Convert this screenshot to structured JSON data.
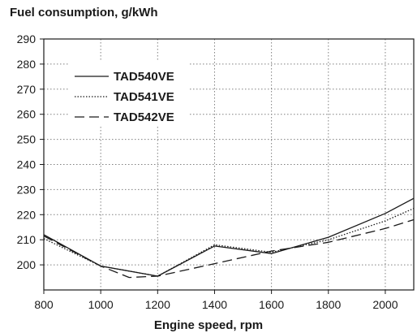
{
  "chart_data": {
    "type": "line",
    "title": "Fuel consumption, g/kWh",
    "xlabel": "Engine speed, rpm",
    "ylabel": "",
    "xlim": [
      800,
      2100
    ],
    "ylim": [
      190,
      290
    ],
    "xticks": [
      800,
      1000,
      1200,
      1400,
      1600,
      1800,
      2000
    ],
    "yticks": [
      200,
      210,
      220,
      230,
      240,
      250,
      260,
      270,
      280,
      290
    ],
    "grid": true,
    "legend_position": "top-left",
    "series": [
      {
        "name": "TAD540VE",
        "style": "solid",
        "x": [
          800,
          1000,
          1200,
          1400,
          1600,
          1800,
          2000,
          2100
        ],
        "y": [
          212,
          199.5,
          195.5,
          207.5,
          204.5,
          211,
          220.5,
          226.5
        ]
      },
      {
        "name": "TAD541VE",
        "style": "dotted",
        "x": [
          800,
          1000,
          1200,
          1400,
          1600,
          1800,
          2000,
          2100
        ],
        "y": [
          210.5,
          199.5,
          195.5,
          208,
          205,
          210,
          217.5,
          222.5
        ]
      },
      {
        "name": "TAD542VE",
        "style": "dashed",
        "x": [
          800,
          1000,
          1100,
          1200,
          1400,
          1600,
          1800,
          2000,
          2100
        ],
        "y": [
          211.5,
          199.5,
          195,
          195.5,
          200.5,
          205.5,
          209,
          214.5,
          218
        ]
      }
    ]
  }
}
